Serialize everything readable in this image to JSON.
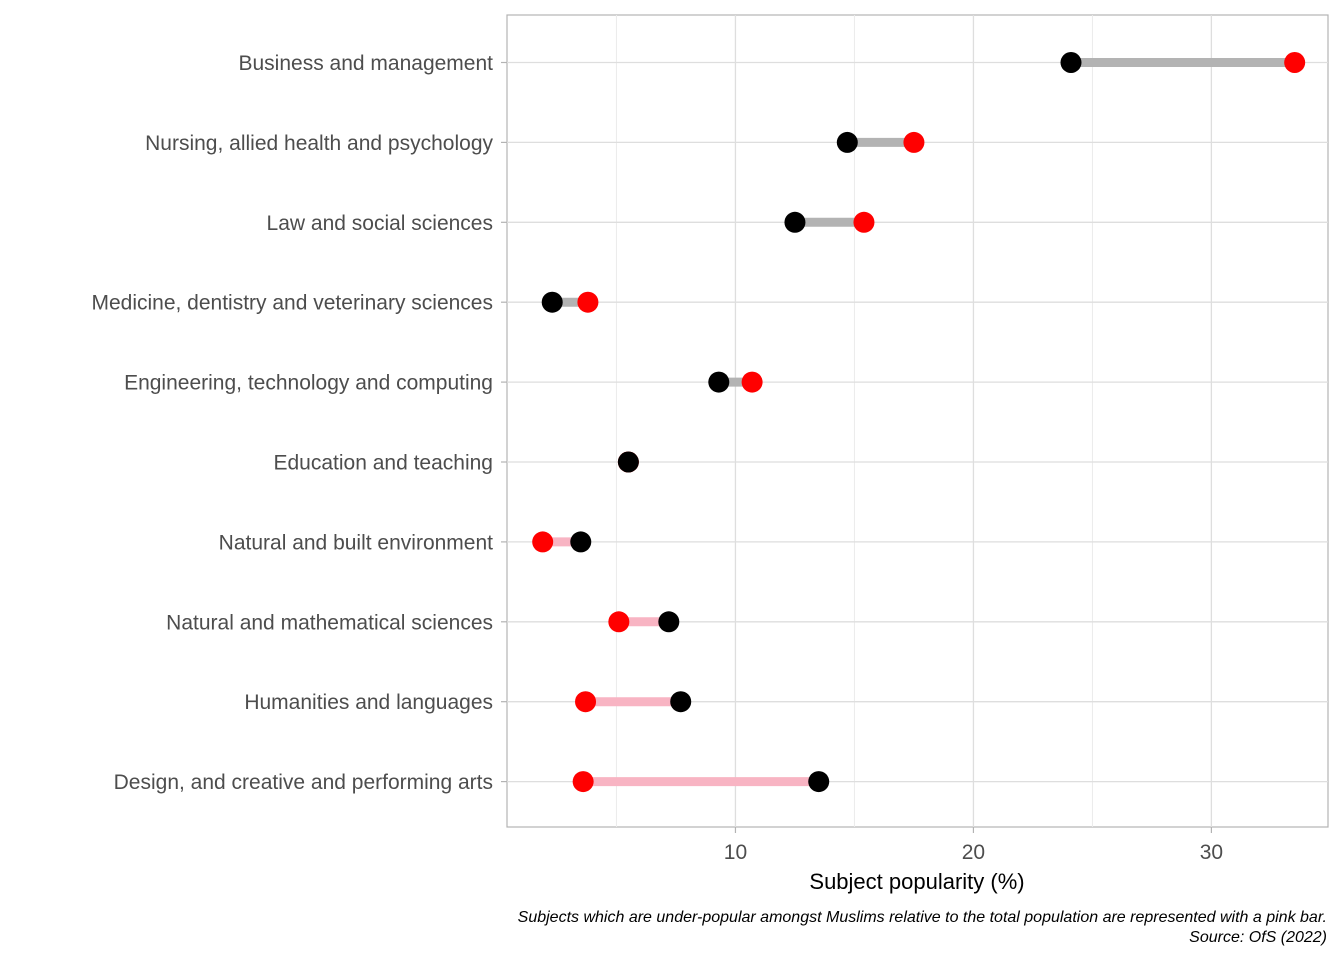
{
  "chart_data": {
    "type": "dumbbell",
    "xlabel": "Subject popularity (%)",
    "ylabel": "",
    "xlim": [
      0.4,
      34.9
    ],
    "x_ticks": [
      10,
      20,
      30
    ],
    "grid": true,
    "categories": [
      "Business and management",
      "Nursing, allied health and psychology",
      "Law and social sciences",
      "Medicine, dentistry and veterinary sciences",
      "Engineering, technology and computing",
      "Education and teaching",
      "Natural and built environment",
      "Natural and mathematical sciences",
      "Humanities and languages",
      "Design, and creative and performing arts"
    ],
    "series": [
      {
        "color": "#000000",
        "values": [
          24.1,
          14.7,
          12.5,
          2.3,
          9.3,
          5.5,
          3.5,
          7.2,
          7.7,
          13.5
        ]
      },
      {
        "color": "#ff0000",
        "values": [
          33.5,
          17.5,
          15.4,
          3.8,
          10.7,
          5.5,
          1.9,
          5.1,
          3.7,
          3.6
        ]
      }
    ],
    "bar_colors": {
      "over": "#b3b3b3",
      "under": "#f8b4c3"
    },
    "caption": [
      "Subjects which are under-popular amongst Muslims relative to the total population are represented with a pink bar.",
      "Source: OfS (2022)"
    ]
  }
}
